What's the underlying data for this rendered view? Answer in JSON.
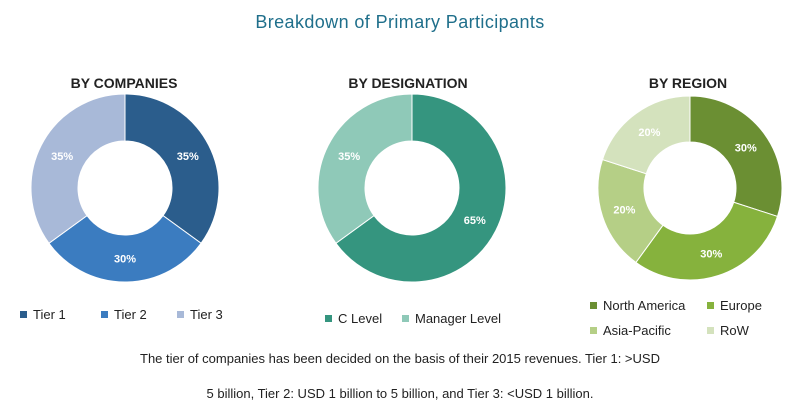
{
  "title": "Breakdown of Primary Participants",
  "note": {
    "line1": "The tier of companies has been decided on the basis of their 2015 revenues. Tier 1: >USD",
    "line2": "5 billion, Tier 2: USD 1 billion to 5 billion, and Tier 3: <USD 1 billion."
  },
  "chart_data": [
    {
      "type": "pie",
      "donut": true,
      "title": "BY COMPANIES",
      "categories": [
        "Tier 1",
        "Tier 2",
        "Tier 3"
      ],
      "values": [
        35,
        30,
        35
      ],
      "labels": [
        "35%",
        "30%",
        "35%"
      ],
      "colors": [
        "#2b5d8c",
        "#3b7cc0",
        "#a8b9d8"
      ],
      "legend": "bottom"
    },
    {
      "type": "pie",
      "donut": true,
      "title": "BY DESIGNATION",
      "categories": [
        "C Level",
        "Manager Level"
      ],
      "values": [
        65,
        35
      ],
      "labels": [
        "65%",
        "35%"
      ],
      "colors": [
        "#35957f",
        "#8fc9b8"
      ],
      "legend": "bottom"
    },
    {
      "type": "pie",
      "donut": true,
      "title": "BY REGION",
      "categories": [
        "North America",
        "Europe",
        "Asia-Pacific",
        "RoW"
      ],
      "values": [
        30,
        30,
        20,
        20
      ],
      "labels": [
        "30%",
        "30%",
        "20%",
        "20%"
      ],
      "colors": [
        "#6b8f33",
        "#86b23d",
        "#b5cf86",
        "#d4e2bd"
      ],
      "legend": "bottom"
    }
  ]
}
